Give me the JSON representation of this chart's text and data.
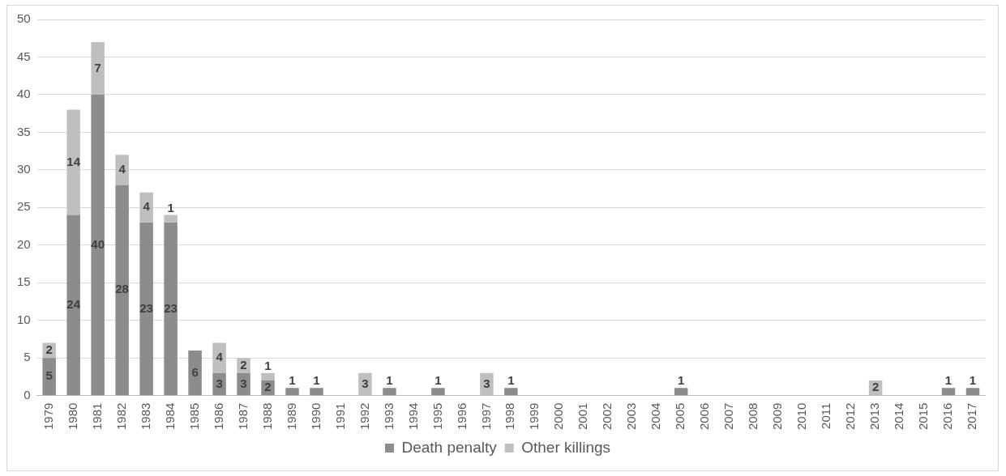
{
  "chart_data": {
    "type": "bar",
    "stacked": true,
    "categories": [
      "1979",
      "1980",
      "1981",
      "1982",
      "1983",
      "1984",
      "1985",
      "1986",
      "1987",
      "1988",
      "1989",
      "1990",
      "1991",
      "1992",
      "1993",
      "1994",
      "1995",
      "1996",
      "1997",
      "1998",
      "1999",
      "2000",
      "2001",
      "2002",
      "2003",
      "2004",
      "2005",
      "2006",
      "2007",
      "2008",
      "2009",
      "2010",
      "2011",
      "2012",
      "2013",
      "2014",
      "2015",
      "2016",
      "2017"
    ],
    "series": [
      {
        "name": "Death penalty",
        "color": "#8c8c8c",
        "values": [
          5,
          24,
          40,
          28,
          23,
          23,
          6,
          3,
          3,
          2,
          1,
          1,
          0,
          0,
          1,
          0,
          1,
          0,
          0,
          1,
          0,
          0,
          0,
          0,
          0,
          0,
          1,
          0,
          0,
          0,
          0,
          0,
          0,
          0,
          0,
          0,
          0,
          1,
          1
        ],
        "value_labels": [
          "5",
          "24",
          "40",
          "28",
          "23",
          "23",
          "6",
          "3",
          "3",
          "2",
          "1",
          "1",
          null,
          null,
          "1",
          null,
          "1",
          null,
          null,
          "1",
          null,
          null,
          null,
          null,
          null,
          null,
          "1",
          null,
          null,
          null,
          null,
          null,
          null,
          null,
          null,
          null,
          null,
          "1",
          "1"
        ]
      },
      {
        "name": "Other killings",
        "color": "#bfbfbf",
        "values": [
          2,
          14,
          7,
          4,
          4,
          1,
          0,
          4,
          2,
          1,
          0,
          0,
          0,
          3,
          0,
          0,
          0,
          0,
          3,
          0,
          0,
          0,
          0,
          0,
          0,
          0,
          0,
          0,
          0,
          0,
          0,
          0,
          0,
          0,
          2,
          0,
          0,
          0,
          0
        ],
        "value_labels": [
          "2",
          "14",
          "7",
          "4",
          "4",
          "1",
          null,
          "4",
          "2",
          "1",
          null,
          null,
          null,
          "3",
          null,
          null,
          null,
          null,
          "3",
          null,
          null,
          null,
          null,
          null,
          null,
          null,
          null,
          null,
          null,
          null,
          null,
          null,
          null,
          null,
          "2",
          null,
          null,
          null,
          null
        ]
      }
    ],
    "ylim": [
      0,
      50
    ],
    "yticks": [
      0,
      5,
      10,
      15,
      20,
      25,
      30,
      35,
      40,
      45,
      50
    ],
    "grid": "y",
    "legend": "bottom"
  }
}
